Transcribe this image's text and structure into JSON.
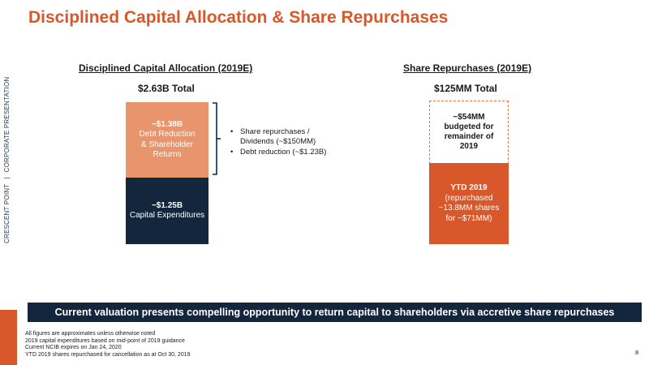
{
  "side_label": {
    "company": "CRESCENT POINT",
    "separator": "|",
    "doc": "CORPORATE PRESENTATION"
  },
  "title": "Disciplined Capital Allocation & Share Repurchases",
  "allocation": {
    "heading": "Disciplined Capital Allocation (2019E)",
    "total": "$2.63B Total",
    "top_block": {
      "amount": "~$1.38B",
      "lines": [
        "Debt Reduction",
        "& Shareholder",
        "Returns"
      ]
    },
    "bottom_block": {
      "amount": "~$1.25B",
      "lines": [
        "Capital Expenditures"
      ]
    },
    "bullets": [
      [
        "Share repurchases /",
        "Dividends (~$150MM)"
      ],
      [
        "Debt reduction (~$1.23B)"
      ]
    ]
  },
  "repurchases": {
    "heading": "Share Repurchases (2019E)",
    "total": "$125MM Total",
    "top_block": {
      "lines": [
        "~$54MM",
        "budgeted for",
        "remainder of",
        "2019"
      ]
    },
    "bottom_block": {
      "amount": "YTD 2019",
      "lines": [
        "(repurchased",
        "~13.8MM shares",
        "for ~$71MM)"
      ]
    }
  },
  "banner": "Current valuation presents compelling opportunity to return capital to shareholders via accretive share repurchases",
  "footnotes": [
    "All figures are approximates unless otherwise noted",
    "2019 capital expenditures based on mid-point of 2019 guidance",
    "Current NCIB expires on Jan 24, 2020",
    "YTD 2019 shares repurchased for cancellation as at Oct 30, 2019"
  ],
  "page_number": "8",
  "colors": {
    "accent": "#d9582b",
    "navy": "#13263c",
    "light_orange": "#e8946c"
  }
}
